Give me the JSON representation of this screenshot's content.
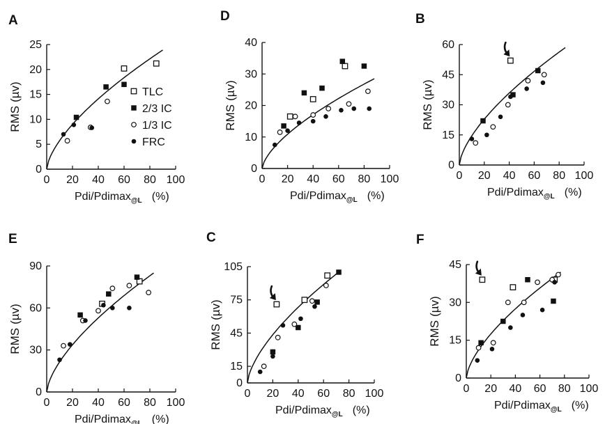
{
  "colors": {
    "ink": "#111111",
    "background": "#ffffff"
  },
  "legend": {
    "entries": [
      {
        "label": "TLC",
        "marker": "open-square"
      },
      {
        "label": "2/3 IC",
        "marker": "filled-square"
      },
      {
        "label": "1/3 IC",
        "marker": "open-circle"
      },
      {
        "label": "FRC",
        "marker": "filled-circle"
      }
    ]
  },
  "chart_data": [
    {
      "panel": "A",
      "type": "scatter",
      "ylabel_main": "RMS",
      "ylabel_unit": "(µv)",
      "xlabel_main": "Pdi/Pdimax",
      "xlabel_sub": "@L",
      "xlabel_unit": "(%)",
      "xlim": [
        0,
        100
      ],
      "ylim": [
        0,
        25
      ],
      "xticks": [
        0,
        20,
        40,
        60,
        80,
        100
      ],
      "yticks": [
        0,
        5,
        10,
        15,
        20,
        25
      ],
      "series": [
        {
          "name": "TLC",
          "marker": "open-square",
          "x": [
            60,
            85
          ],
          "y": [
            20.2,
            21.2
          ]
        },
        {
          "name": "2/3 IC",
          "marker": "filled-square",
          "x": [
            23,
            46,
            60
          ],
          "y": [
            10.4,
            16.5,
            17
          ]
        },
        {
          "name": "1/3 IC",
          "marker": "open-circle",
          "x": [
            16,
            34,
            47
          ],
          "y": [
            5.7,
            8.4,
            13.6
          ]
        },
        {
          "name": "FRC",
          "marker": "filled-circle",
          "x": [
            13,
            21,
            35
          ],
          "y": [
            7,
            8.9,
            8.3
          ]
        }
      ],
      "fit": {
        "x": [
          0,
          90
        ],
        "y": [
          0,
          23.9
        ]
      }
    },
    {
      "panel": "D",
      "type": "scatter",
      "ylabel_main": "RMS",
      "ylabel_unit": "(µv)",
      "xlabel_main": "Pdi/Pdimax",
      "xlabel_sub": "@L",
      "xlabel_unit": "(%)",
      "xlim": [
        0,
        100
      ],
      "ylim": [
        0,
        40
      ],
      "xticks": [
        0,
        20,
        40,
        60,
        80,
        100
      ],
      "yticks": [
        0,
        10,
        20,
        30,
        40
      ],
      "series": [
        {
          "name": "TLC",
          "marker": "open-square",
          "x": [
            22,
            40,
            65
          ],
          "y": [
            16.5,
            22,
            32.5
          ]
        },
        {
          "name": "2/3 IC",
          "marker": "filled-square",
          "x": [
            17,
            33,
            47,
            63,
            80
          ],
          "y": [
            13.5,
            24,
            25.5,
            34,
            32.5
          ]
        },
        {
          "name": "1/3 IC",
          "marker": "open-circle",
          "x": [
            14,
            26,
            40,
            52,
            68,
            83
          ],
          "y": [
            11.5,
            16.5,
            17,
            19,
            20.5,
            24.5
          ]
        },
        {
          "name": "FRC",
          "marker": "filled-circle",
          "x": [
            10,
            20,
            29,
            40,
            50,
            62,
            72,
            84
          ],
          "y": [
            7.5,
            12,
            14.5,
            15,
            16.5,
            18.5,
            19,
            19
          ]
        }
      ],
      "fit": {
        "x": [
          0,
          88
        ],
        "y": [
          0,
          28.5
        ]
      }
    },
    {
      "panel": "B",
      "type": "scatter",
      "ylabel_main": "RMS",
      "ylabel_unit": "(µv)",
      "xlabel_main": "Pdi/Pdimax",
      "xlabel_sub": "@L",
      "xlabel_unit": "(%)",
      "xlim": [
        0,
        100
      ],
      "ylim": [
        0,
        60
      ],
      "xticks": [
        0,
        20,
        40,
        60,
        80,
        100
      ],
      "yticks": [
        0,
        15,
        30,
        45,
        60
      ],
      "series": [
        {
          "name": "TLC",
          "marker": "open-square",
          "x": [
            41
          ],
          "y": [
            52
          ]
        },
        {
          "name": "2/3 IC",
          "marker": "filled-square",
          "x": [
            19,
            43,
            63
          ],
          "y": [
            22,
            35,
            47
          ]
        },
        {
          "name": "1/3 IC",
          "marker": "open-circle",
          "x": [
            13,
            27,
            39,
            55,
            68
          ],
          "y": [
            11,
            19,
            30,
            42,
            45
          ]
        },
        {
          "name": "FRC",
          "marker": "filled-circle",
          "x": [
            10,
            22,
            33,
            41,
            54,
            67
          ],
          "y": [
            13,
            15,
            24,
            34,
            38,
            41
          ]
        }
      ],
      "fit": {
        "x": [
          0,
          85
        ],
        "y": [
          0,
          58.5
        ]
      }
    },
    {
      "panel": "E",
      "type": "scatter",
      "ylabel_main": "RMS",
      "ylabel_unit": "(µv)",
      "xlabel_main": "Pdi/Pdimax",
      "xlabel_sub": "@L",
      "xlabel_unit": "(%)",
      "xlim": [
        0,
        100
      ],
      "ylim": [
        0,
        90
      ],
      "xticks": [
        0,
        20,
        40,
        60,
        80,
        100
      ],
      "yticks": [
        0,
        30,
        60,
        90
      ],
      "series": [
        {
          "name": "TLC",
          "marker": "open-square",
          "x": [
            43,
            72
          ],
          "y": [
            63,
            79
          ]
        },
        {
          "name": "2/3 IC",
          "marker": "filled-square",
          "x": [
            26,
            48,
            70
          ],
          "y": [
            55,
            70,
            82
          ]
        },
        {
          "name": "1/3 IC",
          "marker": "open-circle",
          "x": [
            13,
            28,
            40,
            51,
            64,
            79
          ],
          "y": [
            33,
            51,
            58,
            74,
            76,
            71
          ]
        },
        {
          "name": "FRC",
          "marker": "filled-circle",
          "x": [
            10,
            18,
            30,
            44,
            51,
            64
          ],
          "y": [
            23,
            34,
            51,
            62,
            60,
            60
          ]
        }
      ],
      "fit": {
        "x": [
          0,
          83
        ],
        "y": [
          0,
          85
        ]
      }
    },
    {
      "panel": "C",
      "type": "scatter",
      "ylabel_main": "RMS",
      "ylabel_unit": "(µv)",
      "xlabel_main": "Pdi/Pdimax",
      "xlabel_sub": "@L",
      "xlabel_unit": "(%)",
      "xlim": [
        0,
        100
      ],
      "ylim": [
        0,
        105
      ],
      "xticks": [
        0,
        20,
        40,
        60,
        80,
        100
      ],
      "yticks": [
        0,
        15,
        45,
        75,
        105
      ],
      "series": [
        {
          "name": "TLC",
          "marker": "open-square",
          "x": [
            23,
            45,
            63
          ],
          "y": [
            71,
            75,
            97
          ]
        },
        {
          "name": "2/3 IC",
          "marker": "filled-square",
          "x": [
            20,
            40,
            55,
            72
          ],
          "y": [
            28,
            50,
            73,
            100
          ]
        },
        {
          "name": "1/3 IC",
          "marker": "open-circle",
          "x": [
            13,
            24,
            37,
            51,
            62
          ],
          "y": [
            15,
            41,
            53,
            74,
            88
          ]
        },
        {
          "name": "FRC",
          "marker": "filled-circle",
          "x": [
            10,
            20,
            28,
            42,
            53
          ],
          "y": [
            10,
            24,
            52,
            58,
            69
          ]
        }
      ],
      "fit": {
        "x": [
          0,
          73
        ],
        "y": [
          0,
          101
        ]
      }
    },
    {
      "panel": "F",
      "type": "scatter",
      "ylabel_main": "RMS",
      "ylabel_unit": "(µv)",
      "xlabel_main": "Pdi/Pdimax",
      "xlabel_sub": "@L",
      "xlabel_unit": "(%)",
      "xlim": [
        0,
        100
      ],
      "ylim": [
        0,
        45
      ],
      "xticks": [
        0,
        20,
        40,
        60,
        80,
        100
      ],
      "yticks": [
        0,
        15,
        30,
        45
      ],
      "series": [
        {
          "name": "TLC",
          "marker": "open-square",
          "x": [
            13,
            38,
            72
          ],
          "y": [
            39,
            36,
            39
          ]
        },
        {
          "name": "2/3 IC",
          "marker": "filled-square",
          "x": [
            12,
            30,
            50,
            71
          ],
          "y": [
            14,
            22.5,
            39,
            30.5
          ]
        },
        {
          "name": "1/3 IC",
          "marker": "open-circle",
          "x": [
            10,
            22,
            34,
            47,
            58,
            70,
            75
          ],
          "y": [
            12,
            14,
            30,
            30,
            38,
            39,
            41
          ]
        },
        {
          "name": "FRC",
          "marker": "filled-circle",
          "x": [
            9,
            21,
            36,
            46,
            62,
            72
          ],
          "y": [
            7,
            11.5,
            20,
            25,
            27,
            38
          ]
        }
      ],
      "fit": {
        "x": [
          0,
          77
        ],
        "y": [
          0,
          42
        ]
      }
    }
  ]
}
